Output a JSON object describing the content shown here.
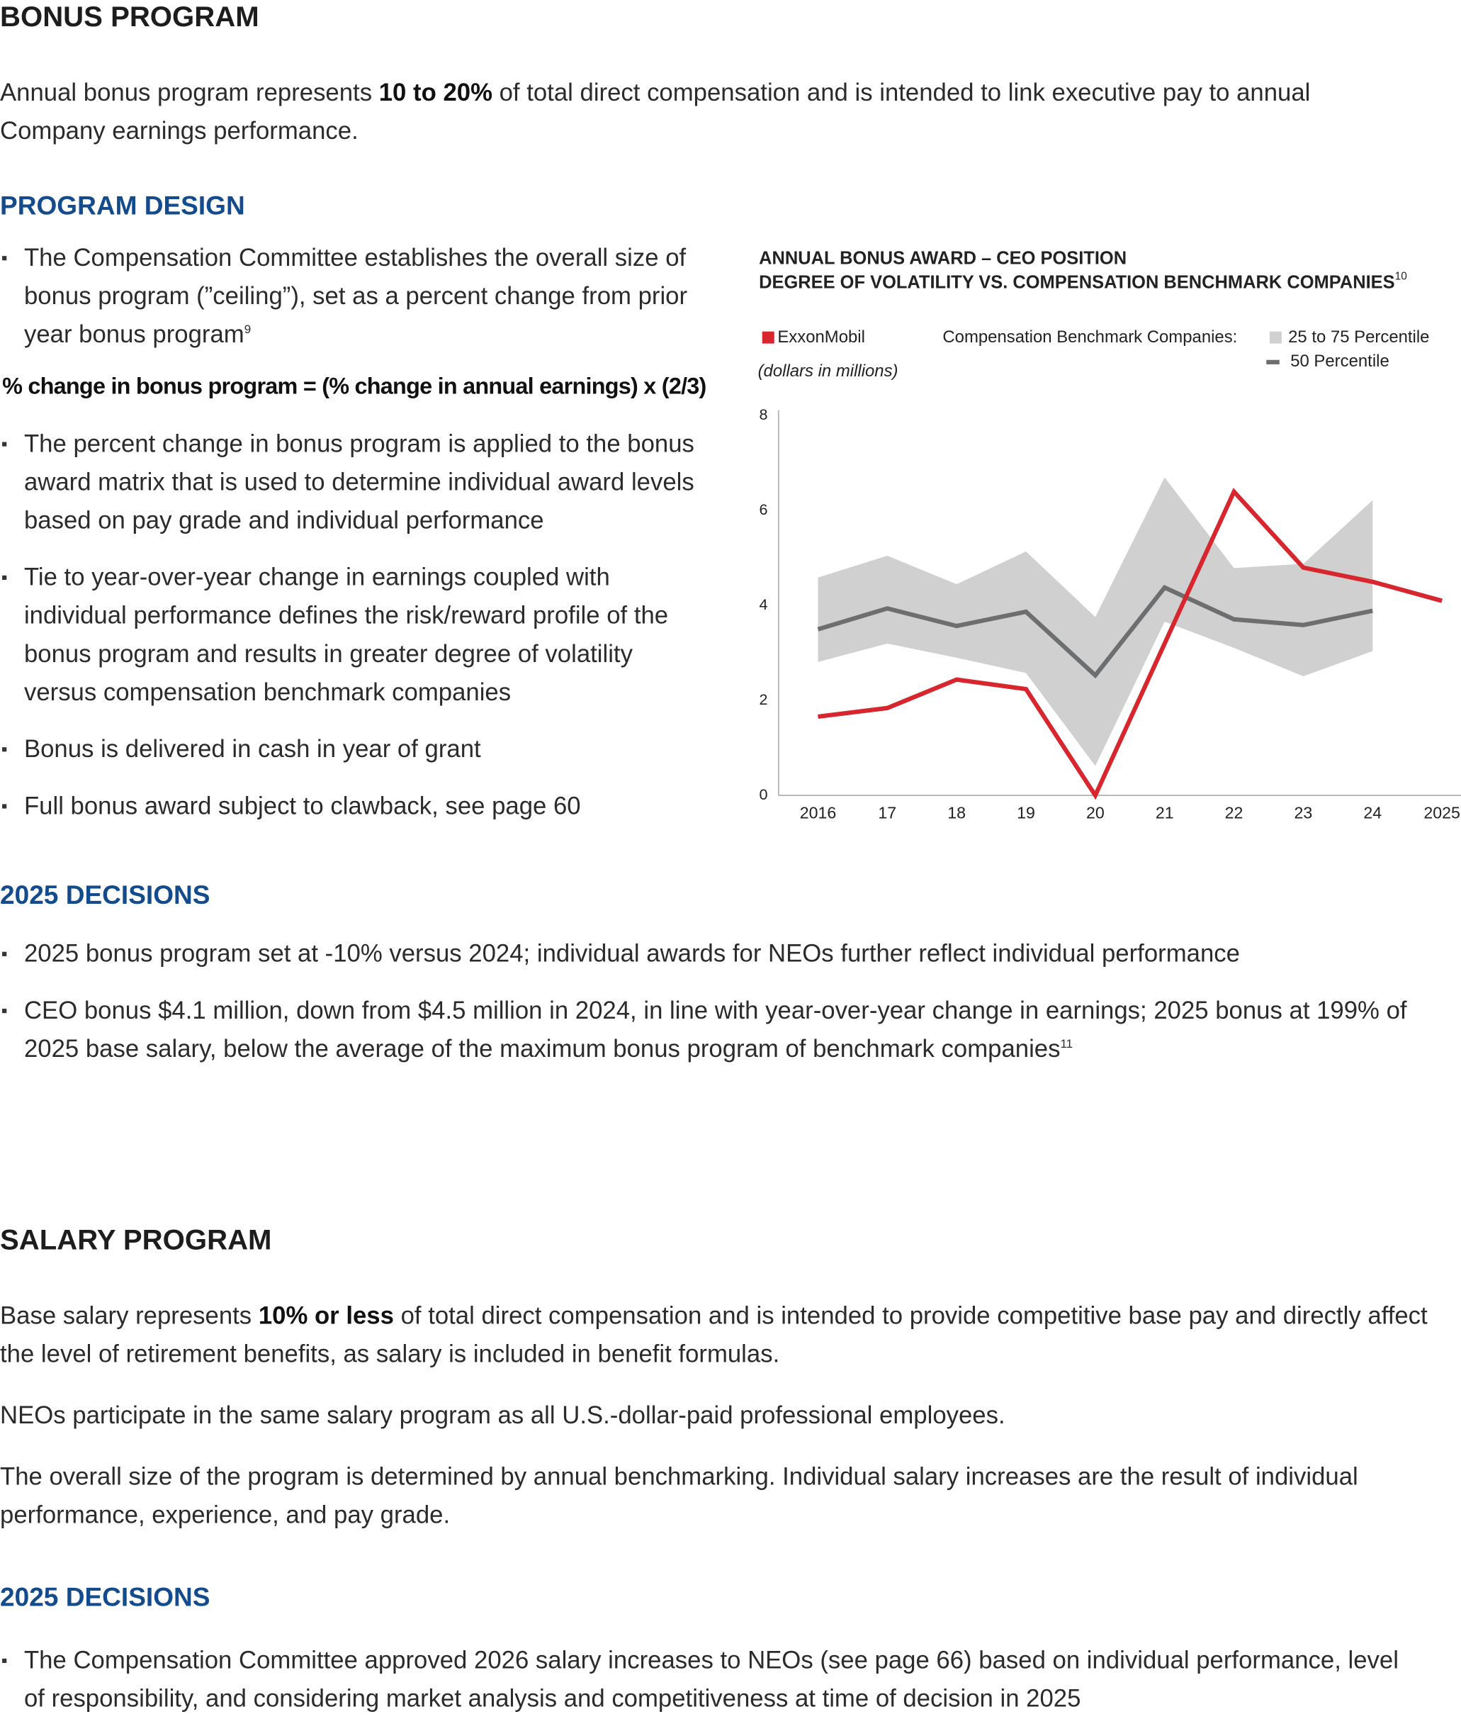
{
  "bonus_program": {
    "heading": "BONUS PROGRAM",
    "intro": {
      "before": "Annual bonus program represents ",
      "bold": "10 to 20%",
      "after": " of total direct compensation and is intended to link executive pay to annual Company earnings performance."
    },
    "program_design": {
      "heading": "PROGRAM DESIGN",
      "bullets": [
        {
          "text": "The Compensation Committee establishes the overall size of bonus program (”ceiling”), set as a percent change from prior year bonus program",
          "footnote": "9",
          "formula": "% change in bonus program = (% change in annual earnings) x (2/3)"
        },
        {
          "text": "The percent change in bonus program is applied to the bonus award matrix that is used to determine individual award levels based on pay grade and individual performance"
        },
        {
          "text": "Tie to year-over-year change in earnings coupled with individual performance defines the risk/reward profile of the bonus program and results in greater degree of volatility versus compensation benchmark companies"
        },
        {
          "text": "Bonus is delivered in cash in year of grant"
        },
        {
          "text": "Full bonus award subject to clawback, see page 60"
        }
      ]
    },
    "chart": {
      "type": "line",
      "title": [
        "ANNUAL BONUS AWARD – CEO POSITION",
        "DEGREE OF VOLATILITY VS. COMPENSATION BENCHMARK COMPANIES"
      ],
      "title_footnote": "10",
      "y_label": "(dollars in millions)",
      "legend_group": "Compensation Benchmark Companies:",
      "categories": [
        "2016",
        "17",
        "18",
        "19",
        "20",
        "21",
        "22",
        "23",
        "24",
        "2025"
      ],
      "series": [
        {
          "name": "ExxonMobil",
          "color": "#d7262d",
          "values": [
            1.66,
            1.84,
            2.44,
            2.24,
            0,
            3.2,
            6.4,
            4.8,
            4.5,
            4.1
          ]
        },
        {
          "name": "25 to 75 Percentile",
          "color": "#d0d0d0",
          "lower": [
            2.81,
            3.2,
            2.9,
            2.58,
            0.62,
            3.66,
            3.11,
            2.51,
            3.04,
            null
          ],
          "upper": [
            4.59,
            5.05,
            4.45,
            5.14,
            3.76,
            6.7,
            4.79,
            4.88,
            6.22,
            null
          ]
        },
        {
          "name": "50 Percentile",
          "color": "#6d6e70",
          "values": [
            3.5,
            3.94,
            3.57,
            3.87,
            2.53,
            4.38,
            3.71,
            3.59,
            3.89,
            null
          ]
        }
      ],
      "ylim": [
        0,
        8
      ],
      "yticks": [
        0,
        2,
        4,
        6,
        8
      ]
    },
    "decisions": {
      "heading": "2025 DECISIONS",
      "bullets": [
        {
          "text": "2025 bonus program set at -10% versus 2024; individual awards for NEOs further reflect individual performance"
        },
        {
          "text": "CEO bonus $4.1 million, down from $4.5 million in 2024, in line with year-over-year change in earnings; 2025 bonus at 199% of 2025 base salary, below the average of the maximum bonus program of benchmark companies",
          "footnote": "11"
        }
      ]
    }
  },
  "salary_program": {
    "heading": "SALARY PROGRAM",
    "intro": {
      "before": "Base salary represents ",
      "bold": "10% or less",
      "after": " of total direct compensation and is intended to provide competitive base pay and directly affect the level of retirement benefits, as salary is included in benefit formulas."
    },
    "paragraphs": [
      "NEOs participate in the same salary program as all U.S.-dollar-paid professional employees.",
      "The overall size of the program is determined by annual benchmarking. Individual salary increases are the result of individual performance, experience, and pay grade."
    ],
    "decisions": {
      "heading": "2025 DECISIONS",
      "bullets": [
        {
          "text": "The Compensation Committee approved 2026 salary increases to NEOs (see page 66) based on individual performance, level of responsibility, and considering market analysis and competitiveness at time of decision in 2025"
        }
      ]
    }
  }
}
